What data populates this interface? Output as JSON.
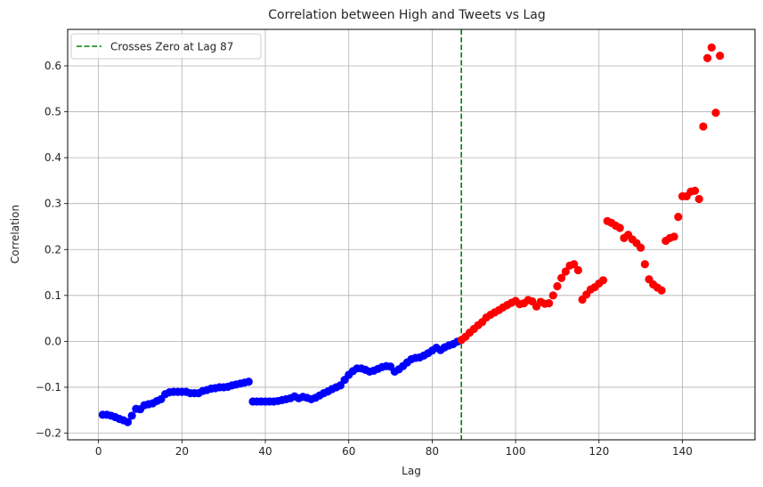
{
  "chart_data": {
    "type": "scatter",
    "title": "Correlation between High and Tweets vs Lag",
    "xlabel": "Lag",
    "ylabel": "Correlation",
    "xlim": [
      -7.4,
      157.4
    ],
    "ylim": [
      -0.2145,
      0.6795
    ],
    "xticks": [
      0,
      20,
      40,
      60,
      80,
      100,
      120,
      140
    ],
    "yticks": [
      -0.2,
      -0.1,
      0.0,
      0.1,
      0.2,
      0.3,
      0.4,
      0.5,
      0.6
    ],
    "xtick_labels": [
      "0",
      "20",
      "40",
      "60",
      "80",
      "100",
      "120",
      "140"
    ],
    "ytick_labels": [
      "−0.2",
      "−0.1",
      "0.0",
      "0.1",
      "0.2",
      "0.3",
      "0.4",
      "0.5",
      "0.6"
    ],
    "grid": true,
    "legend_position": "upper-left",
    "vline": {
      "x": 87,
      "label": "Crosses Zero at Lag 87",
      "color": "#008000",
      "style": "dashed"
    },
    "series": [
      {
        "color": "#0000ff",
        "x": [
          1,
          2,
          3,
          4,
          5,
          6,
          7,
          8,
          9,
          10,
          11,
          12,
          13,
          14,
          15,
          16,
          17,
          18,
          19,
          20,
          21,
          22,
          23,
          24,
          25,
          26,
          27,
          28,
          29,
          30,
          31,
          32,
          33,
          34,
          35,
          36,
          37,
          38,
          39,
          40,
          41,
          42,
          43,
          44,
          45,
          46,
          47,
          48,
          49,
          50,
          51,
          52,
          53,
          54,
          55,
          56,
          57,
          58,
          59,
          60,
          61,
          62,
          63,
          64,
          65,
          66,
          67,
          68,
          69,
          70,
          71,
          72,
          73,
          74,
          75,
          76,
          77,
          78,
          79,
          80,
          81,
          82,
          83,
          84,
          85,
          86
        ],
        "y": [
          -0.16,
          -0.16,
          -0.162,
          -0.165,
          -0.169,
          -0.172,
          -0.176,
          -0.162,
          -0.147,
          -0.148,
          -0.139,
          -0.137,
          -0.135,
          -0.13,
          -0.126,
          -0.115,
          -0.111,
          -0.11,
          -0.11,
          -0.11,
          -0.11,
          -0.113,
          -0.113,
          -0.113,
          -0.108,
          -0.106,
          -0.103,
          -0.102,
          -0.1,
          -0.1,
          -0.099,
          -0.096,
          -0.094,
          -0.092,
          -0.09,
          -0.088,
          -0.131,
          -0.131,
          -0.131,
          -0.131,
          -0.131,
          -0.131,
          -0.13,
          -0.128,
          -0.126,
          -0.124,
          -0.12,
          -0.124,
          -0.121,
          -0.123,
          -0.126,
          -0.123,
          -0.118,
          -0.113,
          -0.109,
          -0.104,
          -0.1,
          -0.096,
          -0.084,
          -0.073,
          -0.065,
          -0.059,
          -0.059,
          -0.062,
          -0.066,
          -0.064,
          -0.06,
          -0.056,
          -0.054,
          -0.055,
          -0.066,
          -0.061,
          -0.054,
          -0.046,
          -0.039,
          -0.036,
          -0.035,
          -0.031,
          -0.026,
          -0.02,
          -0.014,
          -0.019,
          -0.013,
          -0.009,
          -0.006,
          -0.001
        ]
      },
      {
        "color": "#ff0000",
        "x": [
          87,
          88,
          89,
          90,
          91,
          92,
          93,
          94,
          95,
          96,
          97,
          98,
          99,
          100,
          101,
          102,
          103,
          104,
          105,
          106,
          107,
          108,
          109,
          110,
          111,
          112,
          113,
          114,
          115,
          116,
          117,
          118,
          119,
          120,
          121,
          122,
          123,
          124,
          125,
          126,
          127,
          128,
          129,
          130,
          131,
          132,
          133,
          134,
          135,
          136,
          137,
          138,
          139,
          140,
          141,
          142,
          143,
          144,
          145,
          146,
          147,
          148,
          149
        ],
        "y": [
          0.003,
          0.01,
          0.019,
          0.027,
          0.035,
          0.042,
          0.052,
          0.058,
          0.063,
          0.068,
          0.074,
          0.079,
          0.084,
          0.088,
          0.081,
          0.083,
          0.09,
          0.087,
          0.076,
          0.086,
          0.082,
          0.083,
          0.1,
          0.12,
          0.138,
          0.152,
          0.165,
          0.168,
          0.155,
          0.091,
          0.102,
          0.113,
          0.118,
          0.126,
          0.133,
          0.262,
          0.258,
          0.252,
          0.247,
          0.225,
          0.232,
          0.222,
          0.214,
          0.204,
          0.168,
          0.135,
          0.124,
          0.117,
          0.111,
          0.219,
          0.225,
          0.228,
          0.271,
          0.316,
          0.316,
          0.326,
          0.328,
          0.31,
          0.468,
          0.617,
          0.64,
          0.498,
          0.622
        ]
      }
    ]
  }
}
